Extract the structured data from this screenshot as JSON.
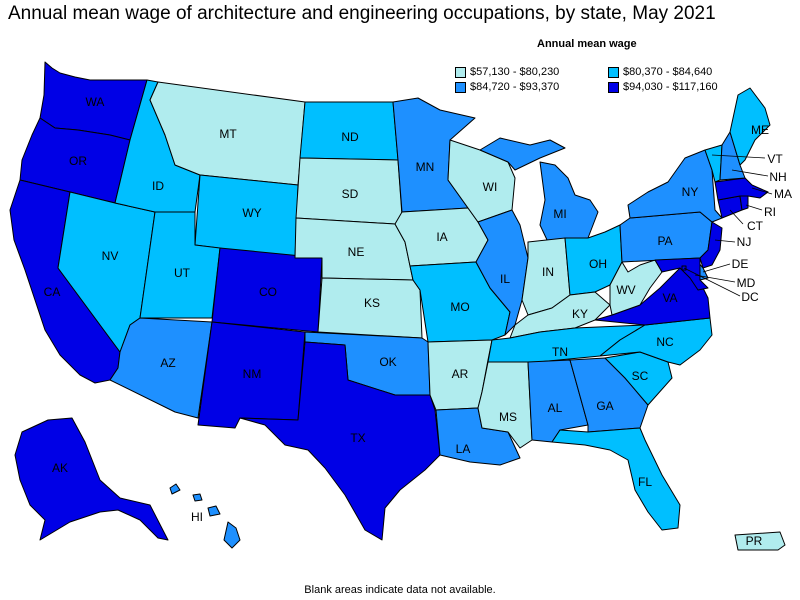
{
  "title": "Annual mean wage of architecture and engineering occupations, by state, May 2021",
  "legend": {
    "title": "Annual mean wage",
    "items": [
      {
        "label": "$57,130 - $80,230",
        "color": "#b0ecee"
      },
      {
        "label": "$80,370 - $84,640",
        "color": "#00bfff"
      },
      {
        "label": "$84,720 - $93,370",
        "color": "#1e90ff"
      },
      {
        "label": "$94,030 - $117,160",
        "color": "#0000e6"
      }
    ]
  },
  "footnote": "Blank areas indicate data not available.",
  "colors": {
    "q1": "#b0ecee",
    "q2": "#00bfff",
    "q3": "#1e90ff",
    "q4": "#0000e6"
  },
  "states": [
    {
      "code": "WA",
      "tier": "q4"
    },
    {
      "code": "OR",
      "tier": "q4"
    },
    {
      "code": "CA",
      "tier": "q4"
    },
    {
      "code": "NV",
      "tier": "q2"
    },
    {
      "code": "ID",
      "tier": "q2"
    },
    {
      "code": "MT",
      "tier": "q1"
    },
    {
      "code": "WY",
      "tier": "q2"
    },
    {
      "code": "UT",
      "tier": "q2"
    },
    {
      "code": "AZ",
      "tier": "q3"
    },
    {
      "code": "CO",
      "tier": "q4"
    },
    {
      "code": "NM",
      "tier": "q4"
    },
    {
      "code": "ND",
      "tier": "q2"
    },
    {
      "code": "SD",
      "tier": "q1"
    },
    {
      "code": "NE",
      "tier": "q1"
    },
    {
      "code": "KS",
      "tier": "q1"
    },
    {
      "code": "OK",
      "tier": "q3"
    },
    {
      "code": "TX",
      "tier": "q4"
    },
    {
      "code": "MN",
      "tier": "q3"
    },
    {
      "code": "IA",
      "tier": "q1"
    },
    {
      "code": "MO",
      "tier": "q2"
    },
    {
      "code": "AR",
      "tier": "q1"
    },
    {
      "code": "LA",
      "tier": "q3"
    },
    {
      "code": "WI",
      "tier": "q1"
    },
    {
      "code": "IL",
      "tier": "q3"
    },
    {
      "code": "MI",
      "tier": "q3"
    },
    {
      "code": "IN",
      "tier": "q1"
    },
    {
      "code": "OH",
      "tier": "q2"
    },
    {
      "code": "KY",
      "tier": "q1"
    },
    {
      "code": "TN",
      "tier": "q2"
    },
    {
      "code": "MS",
      "tier": "q1"
    },
    {
      "code": "AL",
      "tier": "q3"
    },
    {
      "code": "GA",
      "tier": "q3"
    },
    {
      "code": "FL",
      "tier": "q2"
    },
    {
      "code": "SC",
      "tier": "q2"
    },
    {
      "code": "NC",
      "tier": "q2"
    },
    {
      "code": "VA",
      "tier": "q4"
    },
    {
      "code": "WV",
      "tier": "q1"
    },
    {
      "code": "PA",
      "tier": "q3"
    },
    {
      "code": "NY",
      "tier": "q3"
    },
    {
      "code": "VT",
      "tier": "q2"
    },
    {
      "code": "NH",
      "tier": "q3"
    },
    {
      "code": "ME",
      "tier": "q2"
    },
    {
      "code": "MA",
      "tier": "q4"
    },
    {
      "code": "RI",
      "tier": "q4"
    },
    {
      "code": "CT",
      "tier": "q4"
    },
    {
      "code": "NJ",
      "tier": "q4"
    },
    {
      "code": "DE",
      "tier": "q3"
    },
    {
      "code": "MD",
      "tier": "q4"
    },
    {
      "code": "DC",
      "tier": "q4"
    },
    {
      "code": "AK",
      "tier": "q4"
    },
    {
      "code": "HI",
      "tier": "q3"
    },
    {
      "code": "PR",
      "tier": "q1"
    }
  ]
}
